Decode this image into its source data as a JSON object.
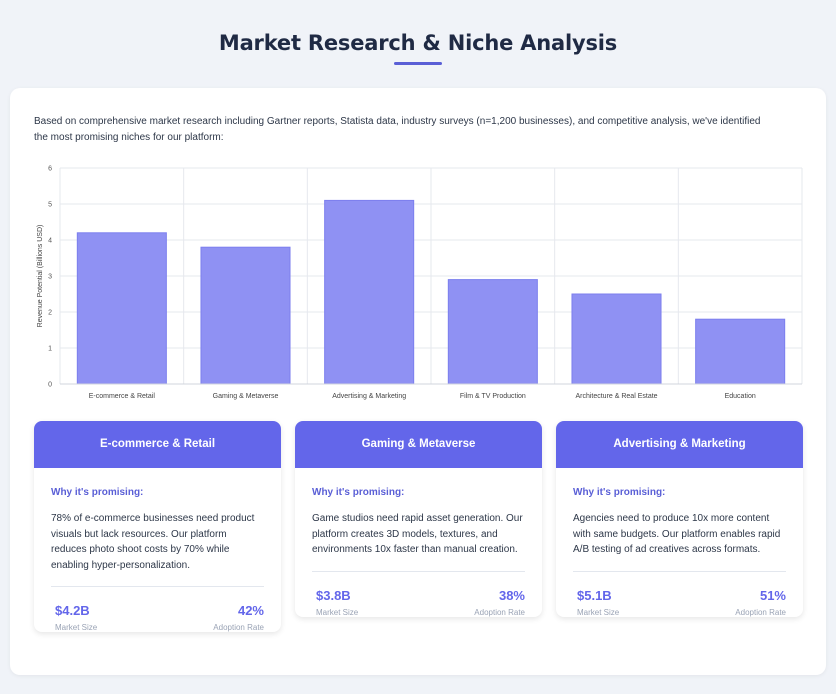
{
  "page": {
    "title": "Market Research & Niche Analysis",
    "intro": "Based on comprehensive market research including Gartner reports, Statista data, industry surveys (n=1,200 businesses), and competitive analysis, we've identified the most promising niches for our platform:"
  },
  "chart_data": {
    "type": "bar",
    "categories": [
      "E-commerce & Retail",
      "Gaming & Metaverse",
      "Advertising & Marketing",
      "Film & TV Production",
      "Architecture & Real Estate",
      "Education"
    ],
    "values": [
      4.2,
      3.8,
      5.1,
      2.9,
      2.5,
      1.8
    ],
    "ylabel": "Revenue Potential (Billions USD)",
    "xlabel": "",
    "ylim": [
      0,
      6
    ],
    "yticks": [
      "0",
      "1",
      "2",
      "3",
      "4",
      "5",
      "6"
    ],
    "grid": true,
    "bar_color": "#8f91f3",
    "bar_border": "#7c7fee"
  },
  "niches": [
    {
      "title": "E-commerce & Retail",
      "why_label": "Why it's promising:",
      "reason": "78% of e-commerce businesses need product visuals but lack resources. Our platform reduces photo shoot costs by 70% while enabling hyper-personalization.",
      "market_size": "$4.2B",
      "market_size_label": "Market Size",
      "adoption_rate": "42%",
      "adoption_rate_label": "Adoption Rate"
    },
    {
      "title": "Gaming & Metaverse",
      "why_label": "Why it's promising:",
      "reason": "Game studios need rapid asset generation. Our platform creates 3D models, textures, and environments 10x faster than manual creation.",
      "market_size": "$3.8B",
      "market_size_label": "Market Size",
      "adoption_rate": "38%",
      "adoption_rate_label": "Adoption Rate"
    },
    {
      "title": "Advertising & Marketing",
      "why_label": "Why it's promising:",
      "reason": "Agencies need to produce 10x more content with same budgets. Our platform enables rapid A/B testing of ad creatives across formats.",
      "market_size": "$5.1B",
      "market_size_label": "Market Size",
      "adoption_rate": "51%",
      "adoption_rate_label": "Adoption Rate"
    }
  ]
}
